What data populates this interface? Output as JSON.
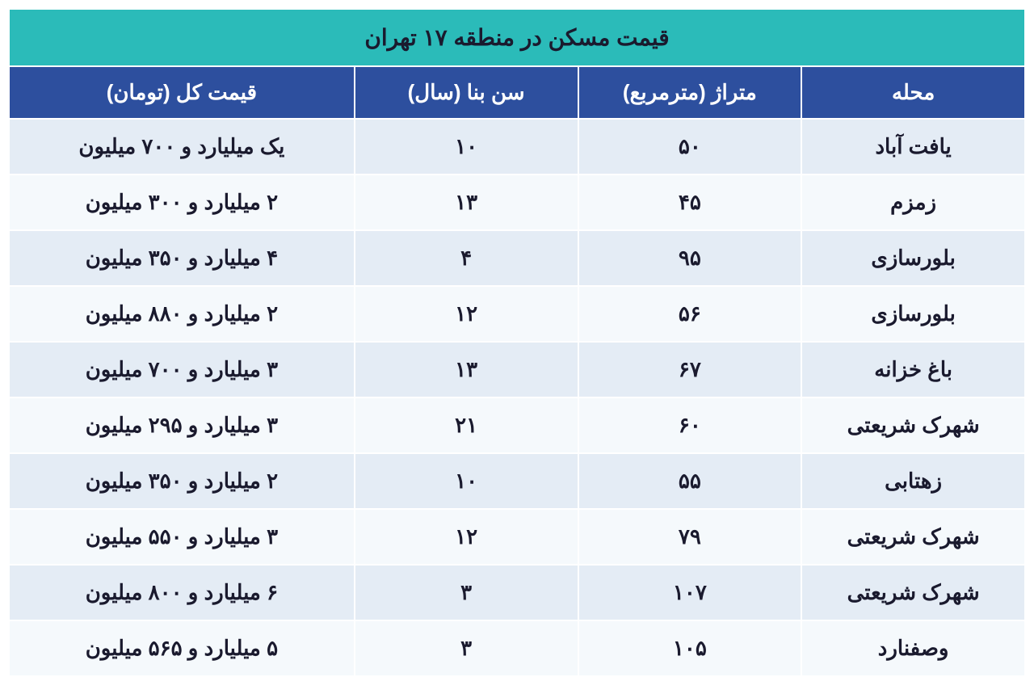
{
  "table": {
    "title": "قیمت مسکن در منطقه ۱۷ تهران",
    "columns": {
      "neighborhood": "محله",
      "area": "متراژ (مترمربع)",
      "age": "سن بنا (سال)",
      "price": "قیمت کل (تومان)"
    },
    "rows": [
      {
        "neighborhood": "یافت آباد",
        "area": "۵۰",
        "age": "۱۰",
        "price": "یک میلیارد و ۷۰۰ میلیون"
      },
      {
        "neighborhood": "زمزم",
        "area": "۴۵",
        "age": "۱۳",
        "price": "۲ میلیارد و ۳۰۰ میلیون"
      },
      {
        "neighborhood": "بلورسازی",
        "area": "۹۵",
        "age": "۴",
        "price": "۴ میلیارد و ۳۵۰ میلیون"
      },
      {
        "neighborhood": "بلورسازی",
        "area": "۵۶",
        "age": "۱۲",
        "price": "۲ میلیارد و ۸۸۰ میلیون"
      },
      {
        "neighborhood": "باغ خزانه",
        "area": "۶۷",
        "age": "۱۳",
        "price": "۳ میلیارد و ۷۰۰ میلیون"
      },
      {
        "neighborhood": "شهرک شریعتی",
        "area": "۶۰",
        "age": "۲۱",
        "price": "۳ میلیارد و ۲۹۵ میلیون"
      },
      {
        "neighborhood": "زهتابی",
        "area": "۵۵",
        "age": "۱۰",
        "price": "۲ میلیارد و ۳۵۰ میلیون"
      },
      {
        "neighborhood": "شهرک شریعتی",
        "area": "۷۹",
        "age": "۱۲",
        "price": "۳ میلیارد و ۵۵۰ میلیون"
      },
      {
        "neighborhood": "شهرک شریعتی",
        "area": "۱۰۷",
        "age": "۳",
        "price": "۶ میلیارد و ۸۰۰ میلیون"
      },
      {
        "neighborhood": "وصفنارد",
        "area": "۱۰۵",
        "age": "۳",
        "price": "۵ میلیارد و ۵۶۵ میلیون"
      }
    ],
    "styling": {
      "title_bg": "#2bbbb9",
      "title_color": "#1a1a2e",
      "header_bg": "#2d4f9e",
      "header_color": "#ffffff",
      "row_even_bg": "#e4ecf5",
      "row_odd_bg": "#f5f9fc",
      "border_color": "#ffffff",
      "font_size_title": 28,
      "font_size_header": 26,
      "font_size_cell": 26,
      "col_widths": {
        "neighborhood": "22%",
        "area": "22%",
        "age": "22%",
        "price": "34%"
      }
    }
  }
}
